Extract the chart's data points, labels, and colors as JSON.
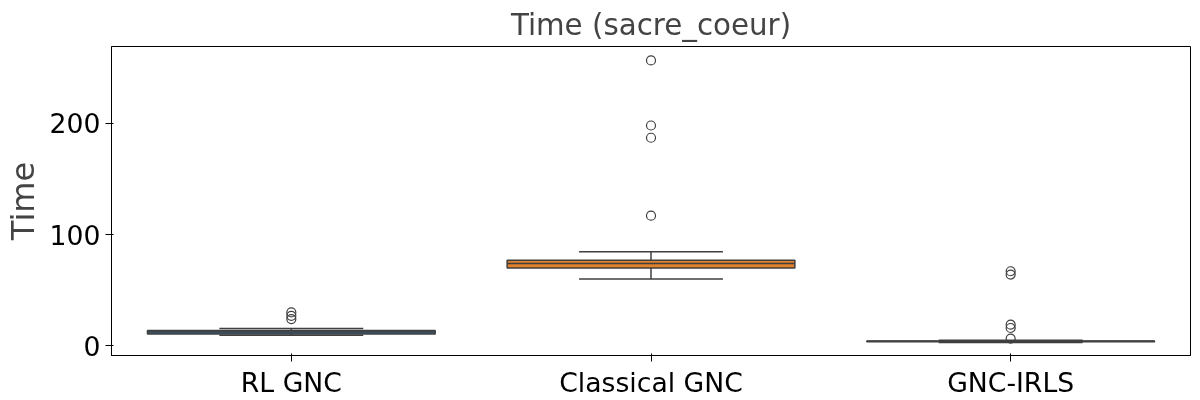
{
  "chart_data": {
    "type": "box",
    "title": "Time (sacre_coeur)",
    "ylabel": "Time",
    "categories": [
      "RL GNC",
      "Classical GNC",
      "GNC-IRLS"
    ],
    "colors": [
      "#3274a1",
      "#e1812c",
      "#3a923a"
    ],
    "boxes": [
      {
        "low": 9.5,
        "q1": 10.7,
        "median": 12.5,
        "q3": 13.7,
        "high": 15.5,
        "outliers": [
          30,
          27,
          24
        ]
      },
      {
        "low": 60,
        "q1": 70,
        "median": 74,
        "q3": 77,
        "high": 84.5,
        "outliers": [
          256.5,
          198,
          187,
          117
        ]
      },
      {
        "low": 3,
        "q1": 3.6,
        "median": 4,
        "q3": 4.4,
        "high": 5,
        "outliers": [
          67,
          64,
          19,
          16,
          6.5
        ]
      }
    ],
    "ylim": [
      -8.7,
      269
    ],
    "yticks": [
      0,
      100,
      200
    ],
    "grid": false
  }
}
